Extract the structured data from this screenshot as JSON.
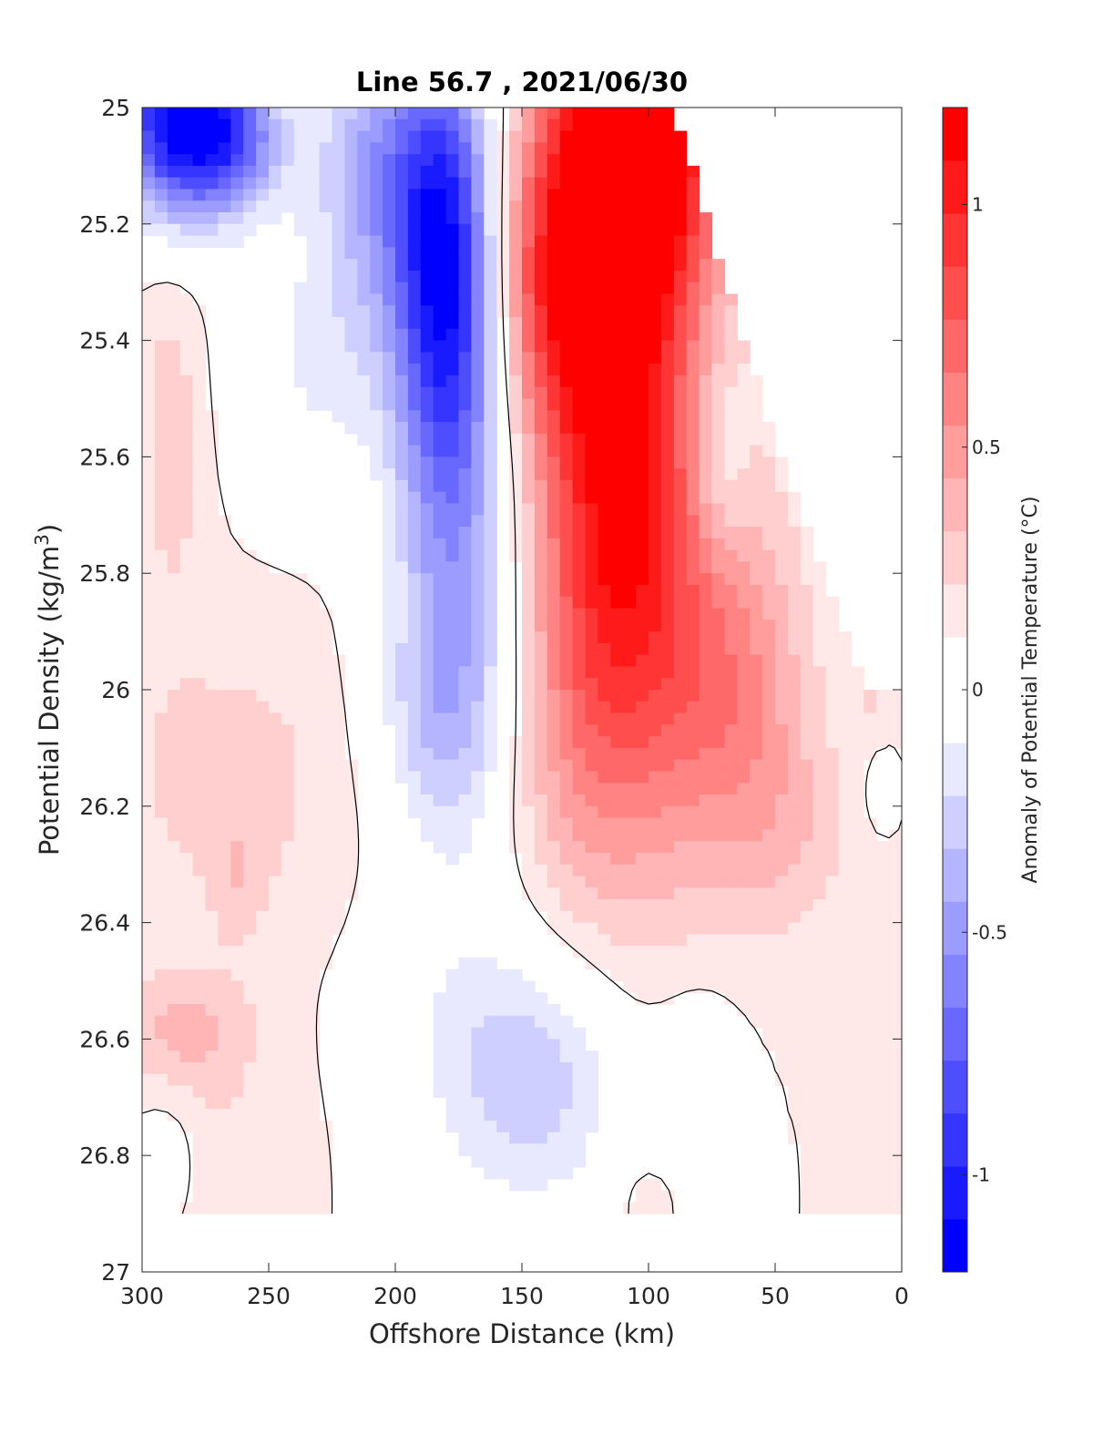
{
  "chart_data": {
    "type": "heatmap",
    "title": "Line 56.7 , 2021/06/30",
    "xlabel": "Offshore Distance (km)",
    "ylabel": "Potential Density (kg/m3)",
    "ylabel_parts": {
      "main": "Potential Density (kg/m",
      "sup": "3",
      "end": ")"
    },
    "xlim": [
      300,
      0
    ],
    "ylim": [
      25,
      27
    ],
    "x_reversed": true,
    "y_reversed": true,
    "xticks": [
      300,
      250,
      200,
      150,
      100,
      50,
      0
    ],
    "xtick_labels": [
      "300",
      "250",
      "200",
      "150",
      "100",
      "50",
      "0"
    ],
    "yticks": [
      25,
      25.2,
      25.4,
      25.6,
      25.8,
      26,
      26.2,
      26.4,
      26.6,
      26.8,
      27
    ],
    "ytick_labels": [
      "25",
      "25.2",
      "25.4",
      "25.6",
      "25.8",
      "26",
      "26.2",
      "26.4",
      "26.6",
      "26.8",
      "27"
    ],
    "colorbar": {
      "label": "Anomaly of Potential Temperature (°C)",
      "clim": [
        -1.2,
        1.2
      ],
      "step": 0.1,
      "ticks": [
        1,
        0.5,
        0,
        -0.5,
        -1
      ],
      "tick_labels": [
        "1",
        "0.5",
        "0",
        "-0.5",
        "-1"
      ],
      "colors_low_to_high": [
        "#0000ff",
        "#1a1aff",
        "#3535ff",
        "#4e4eff",
        "#6868ff",
        "#8383ff",
        "#9c9cff",
        "#b5b5ff",
        "#cfcfff",
        "#e8e8ff",
        "#ffffff",
        "#ffffff",
        "#ffe8e8",
        "#ffcfcf",
        "#ffb5b5",
        "#ff9c9c",
        "#ff8383",
        "#ff6868",
        "#ff4e4e",
        "#ff3535",
        "#ff1a1a",
        "#ff0000"
      ]
    },
    "zero_contour": true,
    "grid": false,
    "data_max_density_row": 26.9,
    "blobs": [
      {
        "x": 285,
        "y": 25.02,
        "sx": 18,
        "sy": 0.12,
        "amp": -1.15
      },
      {
        "x": 262,
        "y": 25.06,
        "sx": 14,
        "sy": 0.08,
        "amp": -0.45
      },
      {
        "x": 180,
        "y": 25.28,
        "sx": 14,
        "sy": 0.26,
        "amp": -0.95
      },
      {
        "x": 205,
        "y": 25.1,
        "sx": 20,
        "sy": 0.18,
        "amp": -0.5
      },
      {
        "x": 175,
        "y": 25.8,
        "sx": 18,
        "sy": 0.32,
        "amp": -0.45
      },
      {
        "x": 183,
        "y": 26.05,
        "sx": 20,
        "sy": 0.14,
        "amp": -0.2
      },
      {
        "x": 230,
        "y": 25.45,
        "sx": 26,
        "sy": 0.16,
        "amp": -0.2
      },
      {
        "x": 105,
        "y": 25.05,
        "sx": 22,
        "sy": 0.22,
        "amp": 1.25
      },
      {
        "x": 112,
        "y": 25.55,
        "sx": 20,
        "sy": 0.3,
        "amp": 0.75
      },
      {
        "x": 140,
        "y": 25.3,
        "sx": 16,
        "sy": 0.2,
        "amp": 0.55
      },
      {
        "x": 120,
        "y": 26.0,
        "sx": 26,
        "sy": 0.28,
        "amp": 0.42
      },
      {
        "x": 80,
        "y": 25.9,
        "sx": 22,
        "sy": 0.28,
        "amp": 0.3
      },
      {
        "x": 60,
        "y": 26.05,
        "sx": 18,
        "sy": 0.2,
        "amp": 0.22
      },
      {
        "x": 72,
        "y": 25.62,
        "sx": 8,
        "sy": 0.12,
        "amp": -0.22
      },
      {
        "x": 40,
        "y": 26.25,
        "sx": 18,
        "sy": 0.12,
        "amp": 0.12
      },
      {
        "x": 288,
        "y": 25.55,
        "sx": 10,
        "sy": 0.22,
        "amp": 0.16
      },
      {
        "x": 265,
        "y": 26.15,
        "sx": 36,
        "sy": 0.18,
        "amp": 0.14
      },
      {
        "x": 262,
        "y": 26.33,
        "sx": 8,
        "sy": 0.08,
        "amp": 0.12
      },
      {
        "x": 283,
        "y": 26.58,
        "sx": 18,
        "sy": 0.07,
        "amp": 0.22
      },
      {
        "x": 270,
        "y": 26.78,
        "sx": 22,
        "sy": 0.12,
        "amp": 0.1
      },
      {
        "x": 290,
        "y": 26.8,
        "sx": 10,
        "sy": 0.08,
        "amp": -0.13
      },
      {
        "x": 142,
        "y": 26.68,
        "sx": 24,
        "sy": 0.16,
        "amp": -0.32
      },
      {
        "x": 175,
        "y": 26.6,
        "sx": 26,
        "sy": 0.2,
        "amp": -0.14
      },
      {
        "x": 80,
        "y": 26.68,
        "sx": 12,
        "sy": 0.12,
        "amp": -0.14
      },
      {
        "x": 8,
        "y": 26.18,
        "sx": 4,
        "sy": 0.04,
        "amp": -0.14
      },
      {
        "x": 13,
        "y": 26.0,
        "sx": 4,
        "sy": 0.04,
        "amp": 0.14
      },
      {
        "x": 100,
        "y": 26.88,
        "sx": 6,
        "sy": 0.04,
        "amp": 0.12
      }
    ]
  }
}
